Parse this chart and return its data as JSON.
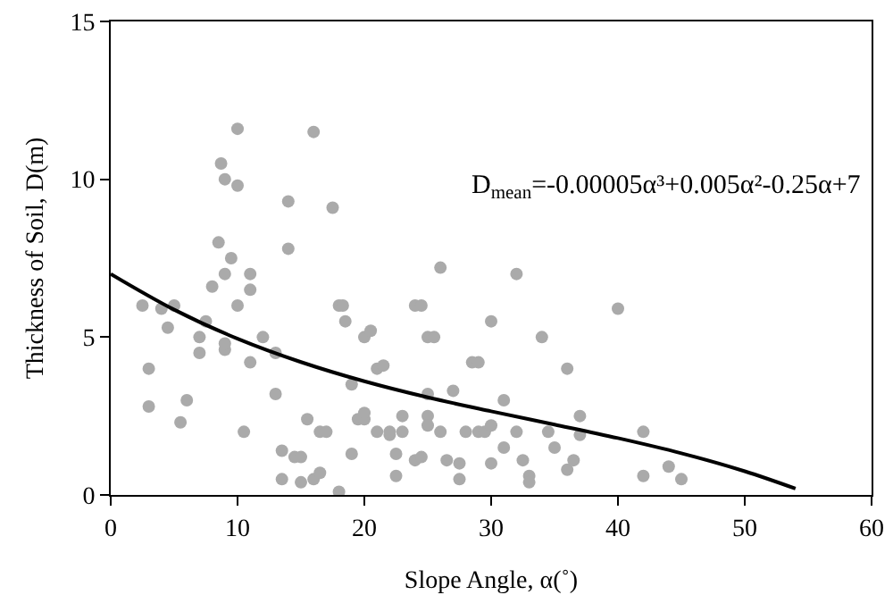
{
  "chart_data": {
    "type": "scatter",
    "xlabel": "Slope Angle, α(˚)",
    "ylabel": "Thickness of Soil, D(m)",
    "xlim": [
      0,
      60
    ],
    "ylim": [
      0,
      15
    ],
    "xticks": [
      0,
      10,
      20,
      30,
      40,
      50,
      60
    ],
    "yticks": [
      0,
      5,
      10,
      15
    ],
    "grid": false,
    "legend": false,
    "annotations": [
      "D$_{mean}$=-0.00005α³+0.005α²-0.25α+7"
    ],
    "series": [
      {
        "type": "scatter",
        "marker": "circle",
        "color": "#aaaaaa",
        "x": [
          2.5,
          3,
          3,
          4,
          4.5,
          5,
          5.5,
          6,
          7,
          7,
          7.5,
          8,
          8.5,
          8.7,
          9,
          9,
          9,
          9,
          9.5,
          10,
          10,
          10,
          10.5,
          11,
          11,
          11,
          12,
          13,
          13,
          13.5,
          13.5,
          14,
          14,
          14.5,
          15,
          15,
          15.5,
          16,
          16,
          16.5,
          16.5,
          17,
          17.5,
          18,
          18.3,
          18,
          18.5,
          19,
          19,
          19.5,
          20,
          20,
          20,
          20.5,
          21,
          21,
          21.5,
          22,
          22,
          22.5,
          22.5,
          23,
          23,
          24,
          24,
          24.5,
          24.5,
          25,
          25,
          25,
          25,
          25.5,
          26,
          26,
          26.5,
          27,
          27.5,
          27.5,
          28,
          28.5,
          29,
          29,
          29.5,
          30,
          30,
          30,
          31,
          31,
          32,
          32,
          32.5,
          33,
          33,
          34,
          34.5,
          35,
          36,
          36,
          36.5,
          37,
          37,
          40,
          42,
          42,
          44,
          45
        ],
        "values": [
          6.0,
          2.8,
          4.0,
          5.9,
          5.3,
          6.0,
          2.3,
          3.0,
          4.5,
          5.0,
          5.5,
          6.6,
          8.0,
          10.5,
          4.6,
          4.8,
          10.0,
          7.0,
          7.5,
          11.6,
          9.8,
          6.0,
          2.0,
          4.2,
          6.5,
          7.0,
          5.0,
          4.5,
          3.2,
          1.4,
          0.5,
          9.3,
          7.8,
          1.2,
          1.2,
          0.4,
          2.4,
          0.5,
          11.5,
          2.0,
          0.7,
          2.0,
          9.1,
          6.0,
          6.0,
          0.1,
          5.5,
          3.5,
          1.3,
          2.4,
          2.4,
          5.0,
          2.6,
          5.2,
          4.0,
          2.0,
          4.1,
          1.9,
          2.0,
          1.3,
          0.6,
          2.5,
          2.0,
          6.0,
          1.1,
          6.0,
          1.2,
          5.0,
          3.2,
          2.5,
          2.2,
          5.0,
          2.0,
          7.2,
          1.1,
          3.3,
          1.0,
          0.5,
          2.0,
          4.2,
          4.2,
          2.0,
          2.0,
          5.5,
          2.2,
          1.0,
          3.0,
          1.5,
          7.0,
          2.0,
          1.1,
          0.6,
          0.4,
          5.0,
          2.0,
          1.5,
          4.0,
          0.8,
          1.1,
          2.5,
          1.9,
          5.9,
          2.0,
          0.6,
          0.9,
          0.5
        ]
      },
      {
        "type": "line",
        "marker": "none",
        "color": "#000000",
        "x": [
          0,
          5,
          10,
          15,
          20,
          25,
          30,
          35,
          40,
          45,
          50,
          54
        ],
        "values": [
          7,
          5.87,
          4.95,
          4.21,
          3.6,
          3.09,
          2.65,
          2.23,
          1.8,
          1.32,
          0.75,
          0.2
        ]
      }
    ]
  }
}
